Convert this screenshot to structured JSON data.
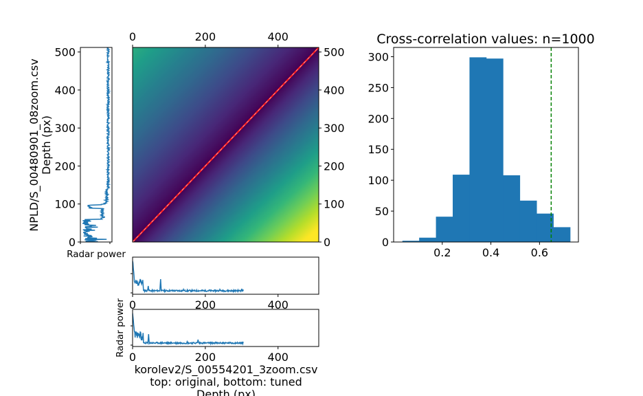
{
  "chart_data": [
    {
      "id": "correlation_matrix",
      "type": "heatmap",
      "colormap": "viridis",
      "xlim": [
        0,
        512
      ],
      "ylim": [
        0,
        512
      ],
      "x_ticks": [
        0,
        200,
        400
      ],
      "y_ticks": [
        0,
        100,
        200,
        300,
        400,
        500
      ],
      "x_tick_position": "top",
      "y_tick_position": "right",
      "diagonal_line_color": "#ff2020",
      "description_values": "distance-like matrix: minimum along diagonal, maximum at bottom-right corner"
    },
    {
      "id": "left_profile",
      "type": "line",
      "xlabel": "Radar power",
      "ylabel": "NPLD/S_00480901_08zoom.csv\nDepth (px)",
      "ylabel_lines": [
        "NPLD/S_00480901_08zoom.csv",
        "Depth (px)"
      ],
      "ylim": [
        0,
        512
      ],
      "y_ticks": [
        0,
        100,
        200,
        300,
        400,
        500
      ],
      "color": "#1f77b4"
    },
    {
      "id": "top_profile",
      "type": "line",
      "xlim": [
        0,
        512
      ],
      "x_ticks": [
        0,
        200,
        400
      ],
      "color": "#1f77b4"
    },
    {
      "id": "bottom_profile",
      "type": "line",
      "xlim": [
        0,
        512
      ],
      "x_ticks": [
        0,
        200,
        400
      ],
      "ylabel": "Radar power",
      "xlabel_lines": [
        "korolev2/S_00554201_3zoom.csv",
        "top: original, bottom: tuned",
        "Depth (px)"
      ],
      "color": "#1f77b4"
    },
    {
      "id": "histogram",
      "type": "bar",
      "title": "Cross-correlation values: n=1000",
      "bin_edges": [
        0.036,
        0.105,
        0.174,
        0.243,
        0.312,
        0.381,
        0.45,
        0.519,
        0.588,
        0.657,
        0.726
      ],
      "values": [
        2,
        7,
        41,
        109,
        299,
        297,
        108,
        67,
        46,
        24
      ],
      "xlim": [
        0.0,
        0.76
      ],
      "ylim": [
        0,
        315
      ],
      "x_ticks": [
        0.2,
        0.4,
        0.6
      ],
      "y_ticks": [
        0,
        50,
        100,
        150,
        200,
        250,
        300
      ],
      "bar_color": "#1f77b4",
      "threshold_line": {
        "x": 0.648,
        "color": "#008000",
        "style": "dashed"
      }
    }
  ]
}
